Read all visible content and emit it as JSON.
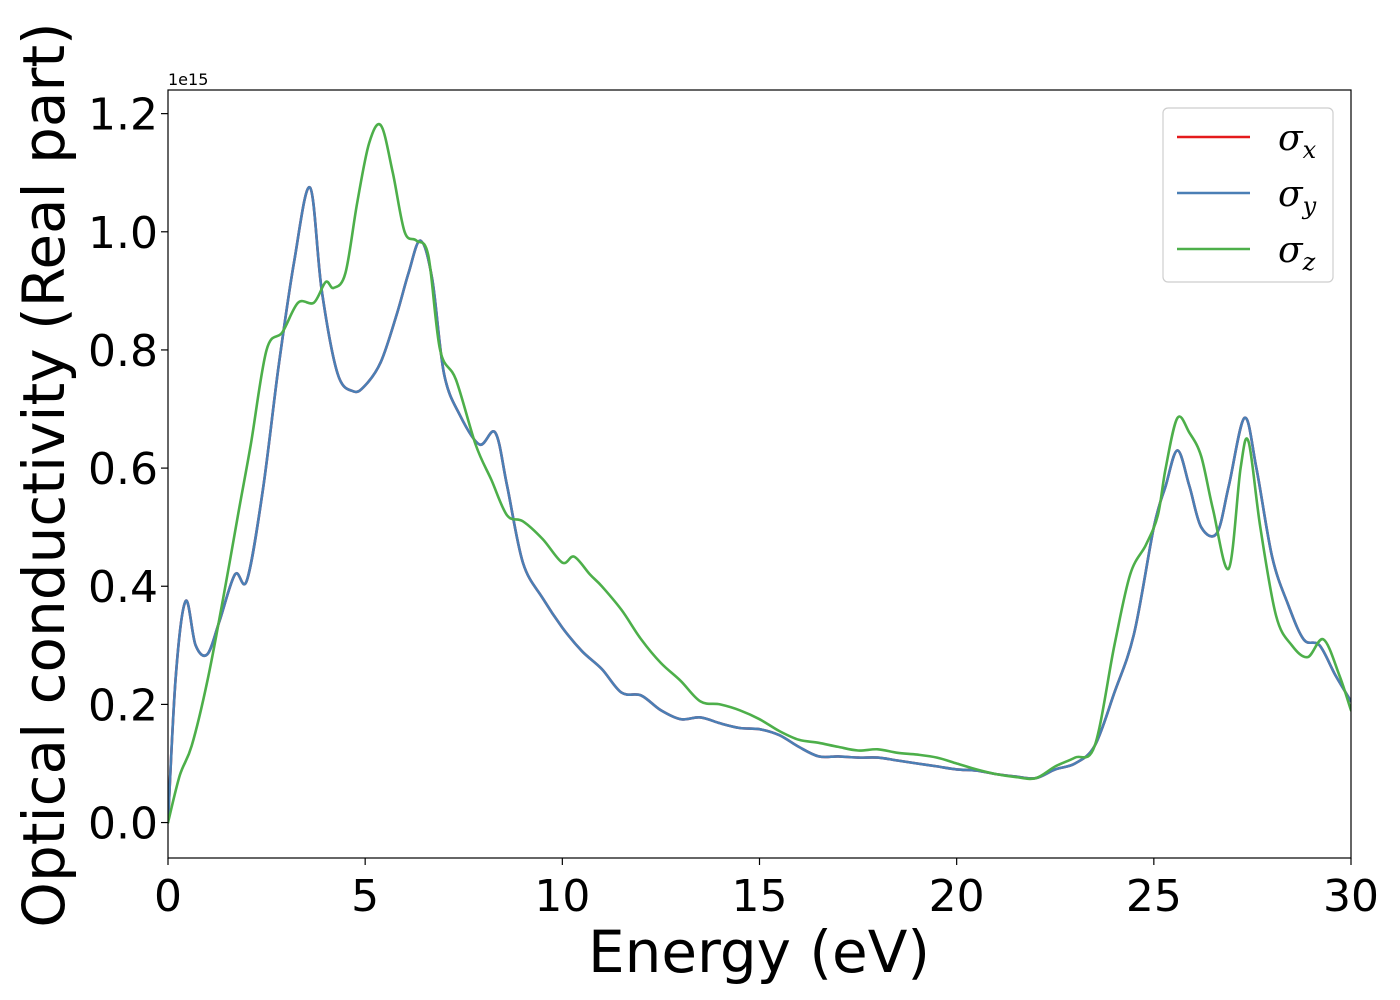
{
  "chart_data": {
    "type": "line",
    "title": "",
    "xlabel": "Energy (eV)",
    "ylabel": "Optical conductivity (Real part)",
    "y_offset_label": "1e15",
    "xlim": [
      0,
      30
    ],
    "ylim": [
      -0.06,
      1.24
    ],
    "x_ticks": [
      0,
      5,
      10,
      15,
      20,
      25,
      30
    ],
    "x_tick_labels": [
      "0",
      "5",
      "10",
      "15",
      "20",
      "25",
      "30"
    ],
    "y_ticks": [
      0.0,
      0.2,
      0.4,
      0.6,
      0.8,
      1.0,
      1.2
    ],
    "y_tick_labels": [
      "0.0",
      "0.2",
      "0.4",
      "0.6",
      "0.8",
      "1.0",
      "1.2"
    ],
    "grid": false,
    "legend_position": "top-right",
    "series": [
      {
        "name": "x",
        "legend_symbol": "σ",
        "legend_subscript": "x",
        "color": "#e41a1c",
        "x": [
          0,
          0.2,
          0.45,
          0.7,
          1.0,
          1.3,
          1.7,
          2.0,
          2.4,
          2.8,
          3.2,
          3.6,
          3.9,
          4.3,
          4.7,
          5.0,
          5.4,
          5.8,
          6.1,
          6.4,
          6.7,
          7.0,
          7.4,
          7.9,
          8.3,
          8.6,
          9.0,
          9.5,
          10.0,
          10.5,
          11.0,
          11.5,
          12.0,
          12.5,
          13.0,
          13.5,
          14.0,
          14.5,
          15.0,
          15.5,
          16.0,
          16.5,
          17.0,
          17.5,
          18.0,
          18.5,
          19.0,
          19.5,
          20.0,
          20.5,
          21.0,
          21.5,
          22.0,
          22.5,
          23.0,
          23.5,
          24.0,
          24.5,
          25.0,
          25.3,
          25.6,
          25.9,
          26.2,
          26.6,
          26.9,
          27.3,
          27.6,
          28.0,
          28.4,
          28.8,
          29.2,
          29.6,
          30.0
        ],
        "values": [
          0.0,
          0.25,
          0.375,
          0.3,
          0.285,
          0.34,
          0.42,
          0.41,
          0.56,
          0.77,
          0.95,
          1.075,
          0.9,
          0.76,
          0.73,
          0.74,
          0.78,
          0.86,
          0.93,
          0.985,
          0.92,
          0.76,
          0.69,
          0.64,
          0.66,
          0.57,
          0.44,
          0.38,
          0.33,
          0.29,
          0.26,
          0.22,
          0.215,
          0.19,
          0.175,
          0.178,
          0.168,
          0.16,
          0.158,
          0.148,
          0.128,
          0.112,
          0.112,
          0.11,
          0.11,
          0.105,
          0.1,
          0.095,
          0.09,
          0.088,
          0.082,
          0.078,
          0.075,
          0.09,
          0.1,
          0.13,
          0.22,
          0.32,
          0.5,
          0.57,
          0.63,
          0.57,
          0.5,
          0.49,
          0.57,
          0.685,
          0.6,
          0.45,
          0.37,
          0.31,
          0.3,
          0.25,
          0.205
        ]
      },
      {
        "name": "y",
        "legend_symbol": "σ",
        "legend_subscript": "y",
        "color": "#4a7fb5",
        "x": [
          0,
          0.2,
          0.45,
          0.7,
          1.0,
          1.3,
          1.7,
          2.0,
          2.4,
          2.8,
          3.2,
          3.6,
          3.9,
          4.3,
          4.7,
          5.0,
          5.4,
          5.8,
          6.1,
          6.4,
          6.7,
          7.0,
          7.4,
          7.9,
          8.3,
          8.6,
          9.0,
          9.5,
          10.0,
          10.5,
          11.0,
          11.5,
          12.0,
          12.5,
          13.0,
          13.5,
          14.0,
          14.5,
          15.0,
          15.5,
          16.0,
          16.5,
          17.0,
          17.5,
          18.0,
          18.5,
          19.0,
          19.5,
          20.0,
          20.5,
          21.0,
          21.5,
          22.0,
          22.5,
          23.0,
          23.5,
          24.0,
          24.5,
          25.0,
          25.3,
          25.6,
          25.9,
          26.2,
          26.6,
          26.9,
          27.3,
          27.6,
          28.0,
          28.4,
          28.8,
          29.2,
          29.6,
          30.0
        ],
        "values": [
          0.0,
          0.25,
          0.375,
          0.3,
          0.285,
          0.34,
          0.42,
          0.41,
          0.56,
          0.77,
          0.95,
          1.075,
          0.9,
          0.76,
          0.73,
          0.74,
          0.78,
          0.86,
          0.93,
          0.985,
          0.92,
          0.76,
          0.69,
          0.64,
          0.66,
          0.57,
          0.44,
          0.38,
          0.33,
          0.29,
          0.26,
          0.22,
          0.215,
          0.19,
          0.175,
          0.178,
          0.168,
          0.16,
          0.158,
          0.148,
          0.128,
          0.112,
          0.112,
          0.11,
          0.11,
          0.105,
          0.1,
          0.095,
          0.09,
          0.088,
          0.082,
          0.078,
          0.075,
          0.09,
          0.1,
          0.13,
          0.22,
          0.32,
          0.5,
          0.57,
          0.63,
          0.57,
          0.5,
          0.49,
          0.57,
          0.685,
          0.6,
          0.45,
          0.37,
          0.31,
          0.3,
          0.25,
          0.205
        ]
      },
      {
        "name": "z",
        "legend_symbol": "σ",
        "legend_subscript": "z",
        "color": "#4daf4a",
        "x": [
          0,
          0.3,
          0.6,
          1.0,
          1.4,
          1.8,
          2.1,
          2.5,
          2.9,
          3.3,
          3.7,
          4.0,
          4.2,
          4.5,
          4.8,
          5.1,
          5.4,
          5.7,
          6.0,
          6.3,
          6.6,
          6.9,
          7.3,
          7.8,
          8.2,
          8.6,
          9.0,
          9.5,
          10.0,
          10.3,
          10.7,
          11.0,
          11.5,
          12.0,
          12.5,
          13.0,
          13.5,
          14.0,
          14.5,
          15.0,
          15.5,
          16.0,
          16.5,
          17.0,
          17.5,
          18.0,
          18.5,
          19.0,
          19.5,
          20.0,
          20.5,
          21.0,
          21.5,
          22.0,
          22.5,
          23.0,
          23.5,
          24.0,
          24.4,
          24.8,
          25.1,
          25.3,
          25.6,
          25.9,
          26.2,
          26.5,
          26.9,
          27.2,
          27.4,
          27.7,
          28.1,
          28.5,
          28.9,
          29.3,
          29.7,
          30.0
        ],
        "values": [
          0.0,
          0.08,
          0.13,
          0.24,
          0.38,
          0.53,
          0.64,
          0.8,
          0.83,
          0.88,
          0.88,
          0.915,
          0.905,
          0.93,
          1.05,
          1.15,
          1.18,
          1.1,
          1.0,
          0.985,
          0.96,
          0.8,
          0.75,
          0.64,
          0.58,
          0.52,
          0.51,
          0.48,
          0.44,
          0.45,
          0.42,
          0.4,
          0.36,
          0.31,
          0.27,
          0.24,
          0.205,
          0.2,
          0.19,
          0.175,
          0.155,
          0.14,
          0.135,
          0.128,
          0.122,
          0.124,
          0.118,
          0.115,
          0.11,
          0.1,
          0.09,
          0.082,
          0.077,
          0.075,
          0.095,
          0.11,
          0.13,
          0.3,
          0.42,
          0.47,
          0.52,
          0.6,
          0.685,
          0.66,
          0.62,
          0.53,
          0.43,
          0.6,
          0.645,
          0.5,
          0.35,
          0.3,
          0.28,
          0.31,
          0.25,
          0.19
        ]
      }
    ]
  }
}
